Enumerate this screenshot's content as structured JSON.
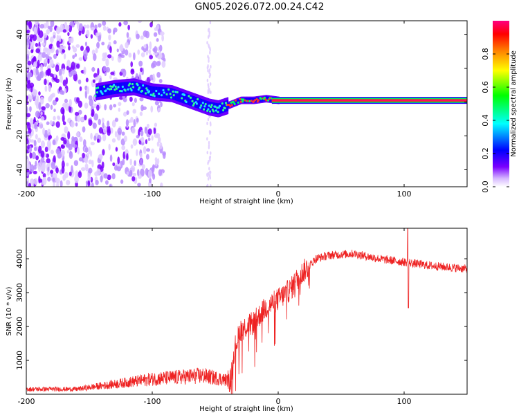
{
  "figure": {
    "title": "GN05.2026.072.00.24.C42"
  },
  "chart_data": [
    {
      "type": "heatmap",
      "title": "GN05.2026.072.00.24.C42",
      "xlabel": "Height of straight line (km)",
      "ylabel": "Frequency (Hz)",
      "xlim": [
        -200,
        150
      ],
      "ylim": [
        -50,
        48
      ],
      "xticks": [
        -200,
        -100,
        0,
        100
      ],
      "yticks": [
        40,
        20,
        0,
        -20,
        -40
      ],
      "colorbar": {
        "label": "Normalized spectral amplitude",
        "range": [
          0,
          1
        ],
        "ticks": [
          0.0,
          0.2,
          0.4,
          0.6,
          0.8
        ],
        "colors": [
          "#ffffff",
          "#7a00ff",
          "#0000ff",
          "#00ffff",
          "#00ff00",
          "#ffff00",
          "#ff8000",
          "#ff0000",
          "#ff0080"
        ]
      },
      "ridge": {
        "description": "dominant frequency trace",
        "points": [
          [
            -145,
            6
          ],
          [
            -130,
            8
          ],
          [
            -115,
            9
          ],
          [
            -100,
            6
          ],
          [
            -85,
            5
          ],
          [
            -70,
            1
          ],
          [
            -55,
            -3
          ],
          [
            -48,
            -4
          ],
          [
            -40,
            -2
          ],
          [
            -30,
            1
          ],
          [
            -20,
            1
          ],
          [
            -10,
            2
          ],
          [
            0,
            1
          ],
          [
            150,
            1
          ]
        ]
      },
      "noise_region_x": [
        -200,
        -120
      ],
      "tone_line": {
        "frequency": 1,
        "from_x": -5,
        "to_x": 150
      }
    },
    {
      "type": "line",
      "xlabel": "Height of straight line (km)",
      "ylabel": "SNR (10 * v/v)",
      "xlim": [
        -200,
        150
      ],
      "ylim": [
        0,
        4900
      ],
      "xticks": [
        -200,
        -100,
        0,
        100
      ],
      "yticks": [
        1000,
        2000,
        3000,
        4000
      ],
      "series": [
        {
          "name": "SNR",
          "color": "#ee2222",
          "envelope": [
            [
              -200,
              150
            ],
            [
              -160,
              150
            ],
            [
              -150,
              200
            ],
            [
              -130,
              300
            ],
            [
              -110,
              400
            ],
            [
              -100,
              450
            ],
            [
              -80,
              500
            ],
            [
              -60,
              550
            ],
            [
              -45,
              450
            ],
            [
              -38,
              400
            ],
            [
              -35,
              1300
            ],
            [
              -30,
              1900
            ],
            [
              -20,
              2100
            ],
            [
              -10,
              2550
            ],
            [
              0,
              2800
            ],
            [
              10,
              3100
            ],
            [
              15,
              3400
            ],
            [
              22,
              3700
            ],
            [
              30,
              4000
            ],
            [
              40,
              4100
            ],
            [
              60,
              4150
            ],
            [
              80,
              4000
            ],
            [
              100,
              3900
            ],
            [
              120,
              3800
            ],
            [
              150,
              3700
            ]
          ]
        }
      ]
    }
  ]
}
